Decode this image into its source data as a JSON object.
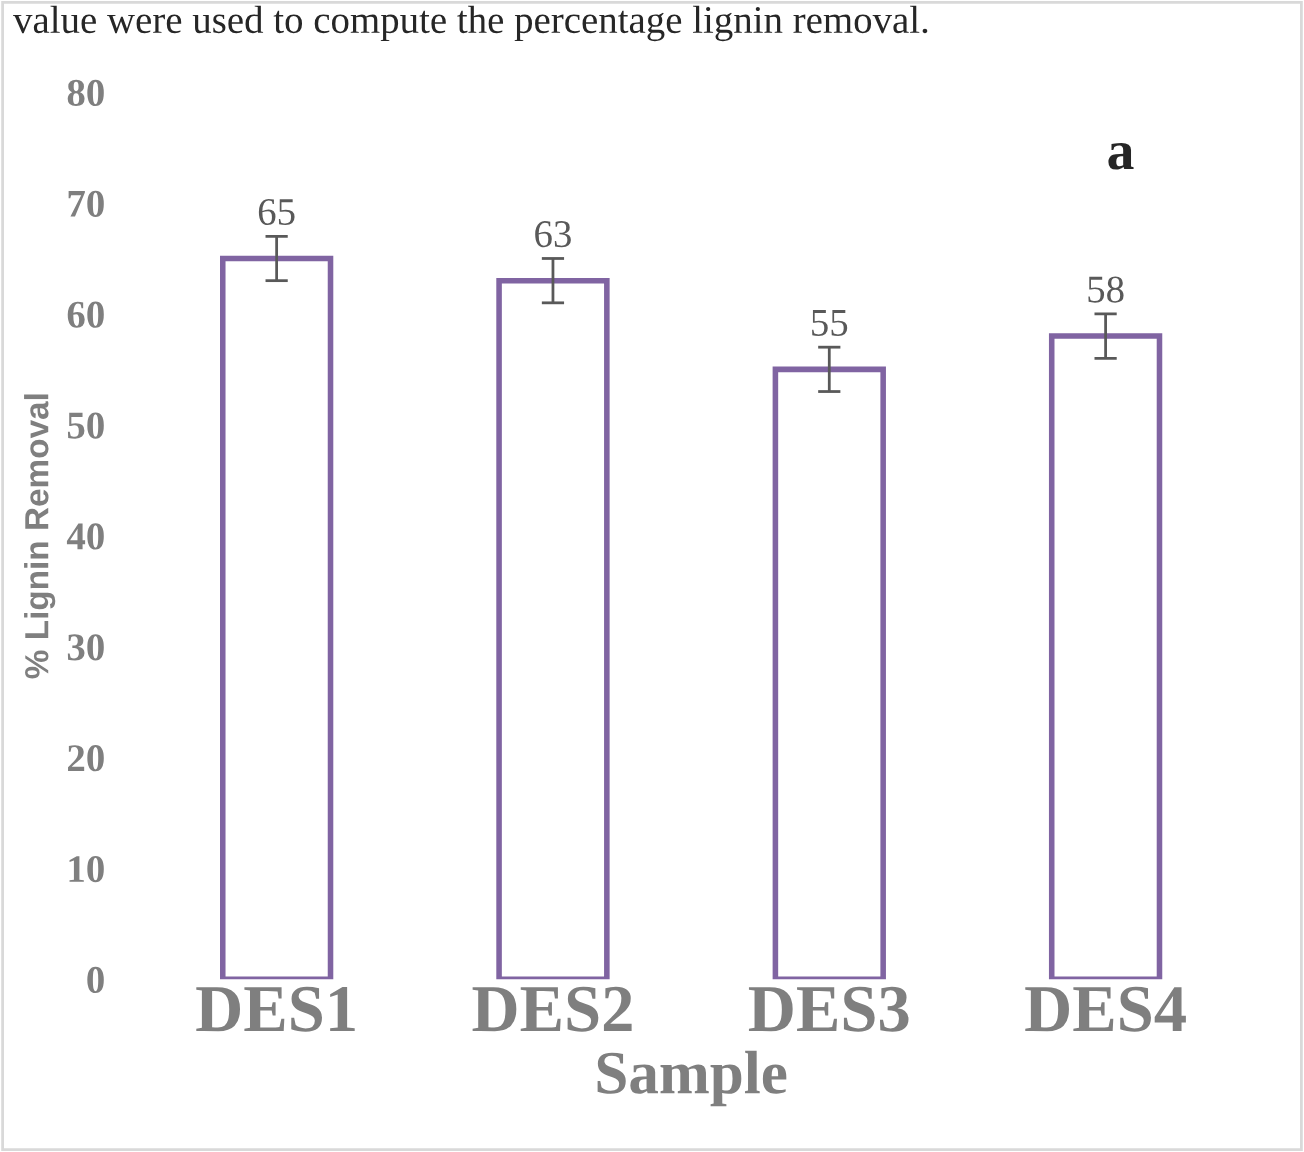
{
  "chart_data": {
    "type": "bar",
    "ylabel": "% Lignin Removal",
    "xlabel": "Sample",
    "categories": [
      "DES1",
      "DES2",
      "DES3",
      "DES4"
    ],
    "values": [
      65,
      63,
      55,
      58
    ],
    "errors": [
      2,
      2,
      2,
      2
    ],
    "color": "#8064a2",
    "data_labels": true,
    "ylim": [
      0,
      80
    ],
    "yticks": [
      0,
      10,
      20,
      30,
      40,
      50,
      60,
      70,
      80
    ],
    "grid": false,
    "annotations": [
      "value were used to compute the percentage lignin removal.",
      "a"
    ]
  }
}
